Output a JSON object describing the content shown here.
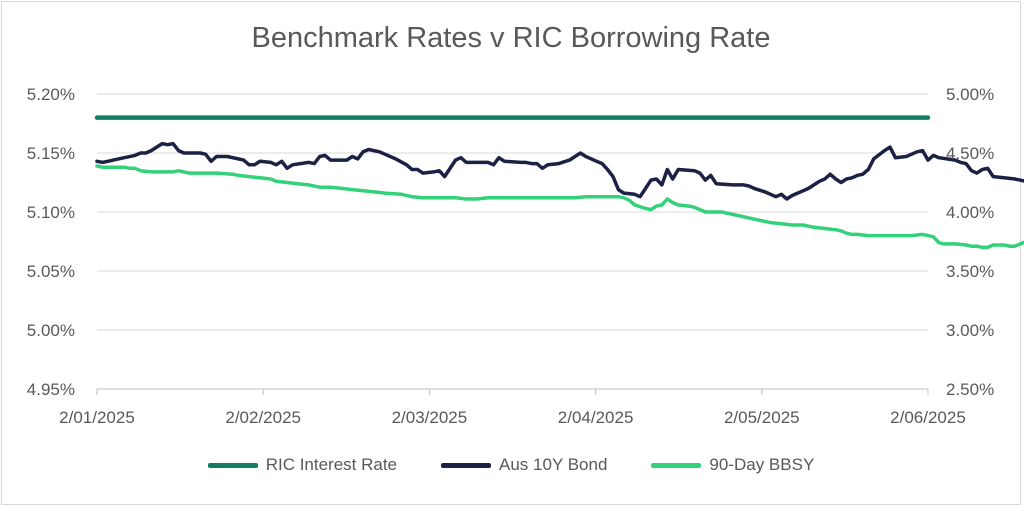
{
  "chart_data": {
    "type": "line",
    "title": "Benchmark Rates v RIC Borrowing Rate",
    "x_tick_labels": [
      "2/01/2025",
      "2/02/2025",
      "2/03/2025",
      "2/04/2025",
      "2/05/2025",
      "2/06/2025"
    ],
    "x_range_days": [
      0,
      153
    ],
    "left_axis": {
      "ylim": [
        4.95,
        5.2
      ],
      "ticks": [
        "5.20%",
        "5.15%",
        "5.10%",
        "5.05%",
        "5.00%",
        "4.95%"
      ]
    },
    "right_axis": {
      "ylim": [
        2.5,
        5.0
      ],
      "ticks": [
        "5.00%",
        "4.50%",
        "4.00%",
        "3.50%",
        "3.00%",
        "2.50%"
      ]
    },
    "legend_position": "bottom",
    "grid": "horizontal",
    "series": [
      {
        "name": "RIC Interest Rate",
        "color": "#137d66",
        "axis": "left",
        "points": [
          [
            0,
            5.18
          ],
          [
            153,
            5.18
          ]
        ]
      },
      {
        "name": "Aus 10Y Bond",
        "color": "#1c2145",
        "axis": "right",
        "points": [
          [
            0,
            4.43
          ],
          [
            1,
            4.42
          ],
          [
            2,
            4.43
          ],
          [
            3,
            4.44
          ],
          [
            5,
            4.46
          ],
          [
            7,
            4.48
          ],
          [
            8,
            4.5
          ],
          [
            9,
            4.5
          ],
          [
            10,
            4.52
          ],
          [
            11,
            4.55
          ],
          [
            12,
            4.58
          ],
          [
            13,
            4.57
          ],
          [
            14,
            4.58
          ],
          [
            15,
            4.52
          ],
          [
            16,
            4.5
          ],
          [
            18,
            4.5
          ],
          [
            19,
            4.5
          ],
          [
            20,
            4.49
          ],
          [
            21,
            4.43
          ],
          [
            22,
            4.47
          ],
          [
            24,
            4.47
          ],
          [
            27,
            4.44
          ],
          [
            28,
            4.4
          ],
          [
            29,
            4.4
          ],
          [
            30,
            4.43
          ],
          [
            32,
            4.42
          ],
          [
            33,
            4.4
          ],
          [
            34,
            4.43
          ],
          [
            35,
            4.37
          ],
          [
            36,
            4.4
          ],
          [
            39,
            4.42
          ],
          [
            40,
            4.41
          ],
          [
            41,
            4.47
          ],
          [
            42,
            4.48
          ],
          [
            43,
            4.44
          ],
          [
            46,
            4.44
          ],
          [
            47,
            4.47
          ],
          [
            48,
            4.45
          ],
          [
            49,
            4.51
          ],
          [
            50,
            4.53
          ],
          [
            52,
            4.51
          ],
          [
            53,
            4.49
          ],
          [
            55,
            4.45
          ],
          [
            57,
            4.4
          ],
          [
            58,
            4.36
          ],
          [
            59,
            4.36
          ],
          [
            60,
            4.33
          ],
          [
            62,
            4.34
          ],
          [
            63,
            4.35
          ],
          [
            64,
            4.3
          ],
          [
            66,
            4.44
          ],
          [
            67,
            4.46
          ],
          [
            68,
            4.42
          ],
          [
            70,
            4.42
          ],
          [
            71,
            4.42
          ],
          [
            72,
            4.42
          ],
          [
            73,
            4.4
          ],
          [
            74,
            4.46
          ],
          [
            75,
            4.43
          ],
          [
            78,
            4.42
          ],
          [
            79,
            4.42
          ],
          [
            80,
            4.41
          ],
          [
            81,
            4.41
          ],
          [
            82,
            4.37
          ],
          [
            83,
            4.4
          ],
          [
            85,
            4.41
          ],
          [
            87,
            4.44
          ],
          [
            89,
            4.5
          ],
          [
            90,
            4.47
          ],
          [
            92,
            4.43
          ],
          [
            93,
            4.41
          ],
          [
            94,
            4.36
          ],
          [
            95,
            4.3
          ],
          [
            96,
            4.19
          ],
          [
            97,
            4.16
          ],
          [
            99,
            4.15
          ],
          [
            100,
            4.13
          ],
          [
            101,
            4.2
          ],
          [
            102,
            4.27
          ],
          [
            103,
            4.28
          ],
          [
            104,
            4.23
          ],
          [
            105,
            4.36
          ],
          [
            106,
            4.28
          ],
          [
            107,
            4.36
          ],
          [
            110,
            4.35
          ],
          [
            111,
            4.33
          ],
          [
            112,
            4.27
          ],
          [
            113,
            4.31
          ],
          [
            114,
            4.24
          ],
          [
            117,
            4.23
          ],
          [
            119,
            4.23
          ],
          [
            120,
            4.22
          ],
          [
            121,
            4.2
          ],
          [
            123,
            4.17
          ],
          [
            124,
            4.15
          ],
          [
            125,
            4.13
          ],
          [
            126,
            4.15
          ],
          [
            127,
            4.11
          ],
          [
            128,
            4.14
          ],
          [
            129,
            4.16
          ],
          [
            130,
            4.18
          ],
          [
            131,
            4.2
          ],
          [
            132,
            4.23
          ],
          [
            133,
            4.26
          ],
          [
            134,
            4.28
          ],
          [
            135,
            4.32
          ],
          [
            136,
            4.28
          ],
          [
            137,
            4.25
          ],
          [
            138,
            4.28
          ],
          [
            139,
            4.29
          ],
          [
            140,
            4.31
          ],
          [
            141,
            4.32
          ],
          [
            142,
            4.36
          ],
          [
            143,
            4.45
          ],
          [
            145,
            4.52
          ],
          [
            146,
            4.55
          ],
          [
            147,
            4.46
          ],
          [
            149,
            4.47
          ],
          [
            151,
            4.51
          ],
          [
            152,
            4.52
          ],
          [
            153,
            4.44
          ],
          [
            154,
            4.48
          ],
          [
            155,
            4.46
          ],
          [
            158,
            4.44
          ],
          [
            159,
            4.42
          ],
          [
            160,
            4.41
          ],
          [
            161,
            4.35
          ],
          [
            162,
            4.33
          ],
          [
            163,
            4.36
          ],
          [
            164,
            4.37
          ],
          [
            165,
            4.3
          ],
          [
            167,
            4.29
          ],
          [
            169,
            4.28
          ],
          [
            171,
            4.26
          ]
        ]
      },
      {
        "name": "90-Day BBSY",
        "color": "#33d17a",
        "axis": "right",
        "points": [
          [
            0,
            4.39
          ],
          [
            1,
            4.38
          ],
          [
            3,
            4.38
          ],
          [
            5,
            4.38
          ],
          [
            6,
            4.37
          ],
          [
            7,
            4.37
          ],
          [
            8,
            4.35
          ],
          [
            10,
            4.34
          ],
          [
            12,
            4.34
          ],
          [
            14,
            4.34
          ],
          [
            15,
            4.35
          ],
          [
            16,
            4.34
          ],
          [
            17,
            4.33
          ],
          [
            19,
            4.33
          ],
          [
            22,
            4.33
          ],
          [
            25,
            4.32
          ],
          [
            26,
            4.31
          ],
          [
            28,
            4.3
          ],
          [
            30,
            4.29
          ],
          [
            32,
            4.28
          ],
          [
            33,
            4.26
          ],
          [
            35,
            4.25
          ],
          [
            37,
            4.24
          ],
          [
            39,
            4.23
          ],
          [
            41,
            4.21
          ],
          [
            43,
            4.21
          ],
          [
            45,
            4.2
          ],
          [
            47,
            4.19
          ],
          [
            49,
            4.18
          ],
          [
            51,
            4.17
          ],
          [
            53,
            4.16
          ],
          [
            56,
            4.15
          ],
          [
            58,
            4.13
          ],
          [
            60,
            4.12
          ],
          [
            62,
            4.12
          ],
          [
            64,
            4.12
          ],
          [
            66,
            4.12
          ],
          [
            68,
            4.11
          ],
          [
            70,
            4.11
          ],
          [
            72,
            4.12
          ],
          [
            74,
            4.12
          ],
          [
            76,
            4.12
          ],
          [
            78,
            4.12
          ],
          [
            80,
            4.12
          ],
          [
            82,
            4.12
          ],
          [
            84,
            4.12
          ],
          [
            86,
            4.12
          ],
          [
            88,
            4.12
          ],
          [
            90,
            4.13
          ],
          [
            92,
            4.13
          ],
          [
            94,
            4.13
          ],
          [
            96,
            4.13
          ],
          [
            97,
            4.12
          ],
          [
            98,
            4.1
          ],
          [
            99,
            4.06
          ],
          [
            101,
            4.03
          ],
          [
            102,
            4.02
          ],
          [
            103,
            4.05
          ],
          [
            104,
            4.06
          ],
          [
            105,
            4.11
          ],
          [
            106,
            4.08
          ],
          [
            107,
            4.06
          ],
          [
            109,
            4.05
          ],
          [
            110,
            4.04
          ],
          [
            111,
            4.02
          ],
          [
            112,
            4.0
          ],
          [
            113,
            4.0
          ],
          [
            115,
            4.0
          ],
          [
            116,
            3.99
          ],
          [
            118,
            3.97
          ],
          [
            120,
            3.95
          ],
          [
            122,
            3.93
          ],
          [
            124,
            3.91
          ],
          [
            126,
            3.9
          ],
          [
            128,
            3.89
          ],
          [
            130,
            3.89
          ],
          [
            131,
            3.88
          ],
          [
            132,
            3.87
          ],
          [
            134,
            3.86
          ],
          [
            136,
            3.85
          ],
          [
            137,
            3.84
          ],
          [
            138,
            3.82
          ],
          [
            139,
            3.81
          ],
          [
            140,
            3.81
          ],
          [
            142,
            3.8
          ],
          [
            144,
            3.8
          ],
          [
            146,
            3.8
          ],
          [
            148,
            3.8
          ],
          [
            150,
            3.8
          ],
          [
            152,
            3.81
          ],
          [
            153,
            3.8
          ],
          [
            154,
            3.79
          ],
          [
            155,
            3.74
          ],
          [
            156,
            3.73
          ],
          [
            158,
            3.73
          ],
          [
            160,
            3.72
          ],
          [
            161,
            3.71
          ],
          [
            162,
            3.71
          ],
          [
            163,
            3.7
          ],
          [
            164,
            3.7
          ],
          [
            165,
            3.72
          ],
          [
            166,
            3.72
          ],
          [
            167,
            3.72
          ],
          [
            168,
            3.71
          ],
          [
            169,
            3.71
          ],
          [
            170,
            3.73
          ],
          [
            171,
            3.75
          ]
        ]
      }
    ]
  }
}
